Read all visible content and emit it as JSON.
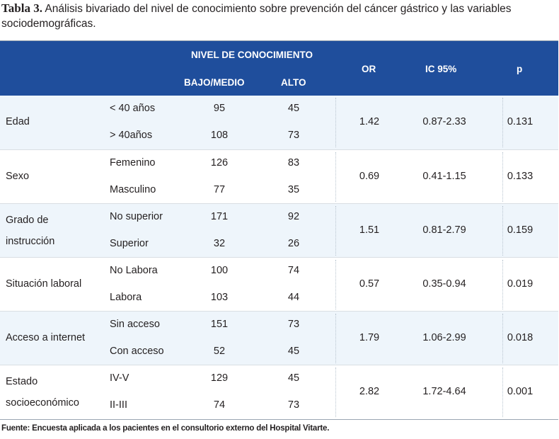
{
  "caption": {
    "label": "Tabla 3.",
    "text": " Análisis bivariado del nivel de conocimiento sobre prevención del cáncer gástrico y las variables sociodemográficas."
  },
  "header": {
    "group_label": "NIVEL DE CONOCIMIENTO",
    "col_bajo": "BAJO/MEDIO",
    "col_alto": "ALTO",
    "col_or": "OR",
    "col_ic": "IC 95%",
    "col_p": "p"
  },
  "rows": [
    {
      "variable": [
        "Edad"
      ],
      "categories": [
        "< 40 años",
        "> 40años"
      ],
      "bajo": [
        "95",
        "108"
      ],
      "alto": [
        "45",
        "73"
      ],
      "or": "1.42",
      "ic": "0.87-2.33",
      "p": "0.131"
    },
    {
      "variable": [
        "Sexo"
      ],
      "categories": [
        "Femenino",
        "Masculino"
      ],
      "bajo": [
        "126",
        "77"
      ],
      "alto": [
        "83",
        "35"
      ],
      "or": "0.69",
      "ic": "0.41-1.15",
      "p": "0.133"
    },
    {
      "variable": [
        "Grado de",
        "instrucción"
      ],
      "categories": [
        "No superior",
        "Superior"
      ],
      "bajo": [
        "171",
        "32"
      ],
      "alto": [
        "92",
        "26"
      ],
      "or": "1.51",
      "ic": "0.81-2.79",
      "p": "0.159"
    },
    {
      "variable": [
        "Situación laboral"
      ],
      "categories": [
        "No Labora",
        "Labora"
      ],
      "bajo": [
        "100",
        "103"
      ],
      "alto": [
        "74",
        "44"
      ],
      "or": "0.57",
      "ic": "0.35-0.94",
      "p": "0.019"
    },
    {
      "variable": [
        "Acceso a internet"
      ],
      "categories": [
        "Sin acceso",
        "Con acceso"
      ],
      "bajo": [
        "151",
        "52"
      ],
      "alto": [
        "73",
        "45"
      ],
      "or": "1.79",
      "ic": "1.06-2.99",
      "p": "0.018"
    },
    {
      "variable": [
        "Estado",
        "socioeconómico"
      ],
      "categories": [
        "IV-V",
        "II-III"
      ],
      "bajo": [
        "129",
        "74"
      ],
      "alto": [
        "45",
        "73"
      ],
      "or": "2.82",
      "ic": "1.72-4.64",
      "p": "0.001"
    }
  ],
  "footer": "Fuente: Encuesta aplicada a los pacientes en el consultorio externo del Hospital Vitarte.",
  "colors": {
    "header_bg": "#1f4e9c",
    "row_alt_bg": "#eef5fb"
  }
}
